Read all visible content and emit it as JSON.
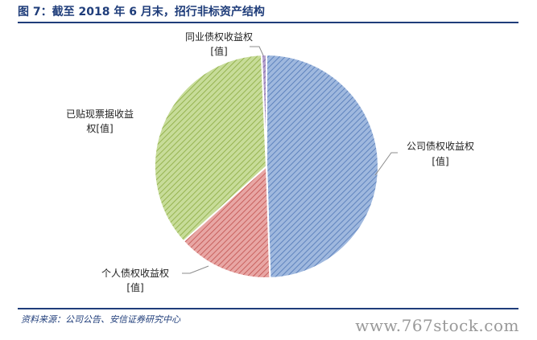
{
  "header": {
    "title": "图 7：截至 2018 年 6 月末，招行非标资产结构"
  },
  "footer": {
    "source": "资料来源：公司公告、安信证券研究中心",
    "watermark": "www.767stock.com"
  },
  "chart_data": {
    "type": "pie",
    "title": "截至 2018 年 6 月末，招行非标资产结构",
    "slices": [
      {
        "label": "公司债权收益权",
        "value_label": "[值]",
        "value": 49.5,
        "color": "#9fb8de",
        "hatch": "#4f76b6"
      },
      {
        "label": "个人债权收益权",
        "value_label": "[值]",
        "value": 13.8,
        "color": "#e8a6a4",
        "hatch": "#c0504d"
      },
      {
        "label": "已贴现票据收益权",
        "value_label": "[值]",
        "value": 36.0,
        "color": "#c7dc99",
        "hatch": "#8aaa3f"
      },
      {
        "label": "同业债权收益权",
        "value_label": "[值]",
        "value": 0.7,
        "color": "#b6a4cd",
        "hatch": "#7b5ea8"
      }
    ],
    "start_angle_deg": 0,
    "direction": "clockwise",
    "legend": "none"
  }
}
